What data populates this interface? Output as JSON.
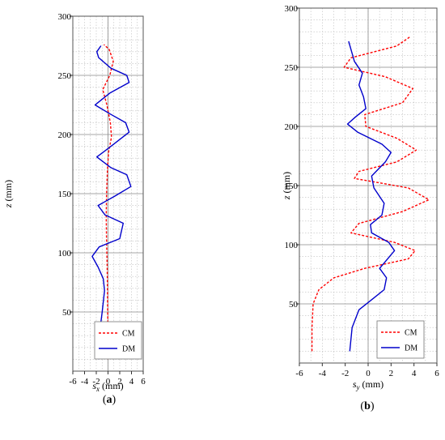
{
  "chart_data": [
    {
      "type": "line",
      "panel_label": "(a)",
      "xlabel": "s",
      "xlabel_sub": "x",
      "xlabel_unit": " (mm)",
      "ylabel": "z",
      "ylabel_unit": " (mm)",
      "xlim": [
        -6,
        6
      ],
      "ylim": [
        0,
        300
      ],
      "xticks": [
        -6,
        -4,
        -2,
        0,
        2,
        4,
        6
      ],
      "yticks": [
        50,
        100,
        150,
        200,
        250,
        300
      ],
      "grid": true,
      "legend_position": "bottom-right",
      "series": [
        {
          "name": "CM",
          "color": "#ff0000",
          "dash": "dashed",
          "points": [
            [
              0,
              10
            ],
            [
              0,
              30
            ],
            [
              -0.05,
              50
            ],
            [
              -0.1,
              70
            ],
            [
              -0.15,
              90
            ],
            [
              -0.25,
              110
            ],
            [
              -0.3,
              130
            ],
            [
              -0.25,
              150
            ],
            [
              -0.1,
              170
            ],
            [
              0.1,
              185
            ],
            [
              0.6,
              198
            ],
            [
              0.4,
              210
            ],
            [
              -0.2,
              225
            ],
            [
              -0.9,
              238
            ],
            [
              0.3,
              250
            ],
            [
              0.9,
              262
            ],
            [
              0.2,
              272
            ],
            [
              -0.7,
              276
            ]
          ]
        },
        {
          "name": "DM",
          "color": "#0000cc",
          "dash": "solid",
          "points": [
            [
              -1.6,
              10
            ],
            [
              -1.5,
              30
            ],
            [
              -1,
              50
            ],
            [
              -0.6,
              68
            ],
            [
              -0.8,
              78
            ],
            [
              -1.7,
              88
            ],
            [
              -2.7,
              97
            ],
            [
              -1.5,
              105
            ],
            [
              2.0,
              112
            ],
            [
              2.6,
              125
            ],
            [
              -0.5,
              132
            ],
            [
              -1.7,
              140
            ],
            [
              1.2,
              148
            ],
            [
              3.9,
              156
            ],
            [
              3.2,
              166
            ],
            [
              0.5,
              172
            ],
            [
              -1.9,
              181
            ],
            [
              0.5,
              190
            ],
            [
              3.6,
              202
            ],
            [
              3.0,
              210
            ],
            [
              0.5,
              217
            ],
            [
              -2.2,
              225
            ],
            [
              0.3,
              235
            ],
            [
              3.6,
              244
            ],
            [
              3.2,
              250
            ],
            [
              0.5,
              256
            ],
            [
              -1.6,
              265
            ],
            [
              -1.9,
              270
            ],
            [
              -1.2,
              275
            ]
          ]
        }
      ]
    },
    {
      "type": "line",
      "panel_label": "(b)",
      "xlabel": "s",
      "xlabel_sub": "y",
      "xlabel_unit": " (mm)",
      "ylabel": "z",
      "ylabel_unit": " (mm)",
      "xlim": [
        -6,
        6
      ],
      "ylim": [
        0,
        300
      ],
      "xticks": [
        -6,
        -4,
        -2,
        0,
        2,
        4,
        6
      ],
      "yticks": [
        50,
        100,
        150,
        200,
        250,
        300
      ],
      "grid": true,
      "legend_position": "bottom-right",
      "series": [
        {
          "name": "CM",
          "color": "#ff0000",
          "dash": "dashed",
          "points": [
            [
              -4.9,
              10
            ],
            [
              -4.9,
              30
            ],
            [
              -4.8,
              50
            ],
            [
              -4.3,
              62
            ],
            [
              -3.0,
              72
            ],
            [
              -0.3,
              80
            ],
            [
              3.5,
              88
            ],
            [
              4.1,
              95
            ],
            [
              2.3,
              102
            ],
            [
              -1.5,
              110
            ],
            [
              -0.8,
              118
            ],
            [
              3.0,
              128
            ],
            [
              5.3,
              138
            ],
            [
              3.5,
              148
            ],
            [
              -1.2,
              156
            ],
            [
              -0.8,
              162
            ],
            [
              2.5,
              170
            ],
            [
              4.2,
              180
            ],
            [
              2.5,
              190
            ],
            [
              -0.2,
              200
            ],
            [
              -0.3,
              210
            ],
            [
              3.0,
              220
            ],
            [
              3.9,
              232
            ],
            [
              1.5,
              242
            ],
            [
              -2.1,
              250
            ],
            [
              -1.5,
              258
            ],
            [
              2.5,
              268
            ],
            [
              3.7,
              276
            ]
          ]
        },
        {
          "name": "DM",
          "color": "#0000cc",
          "dash": "solid",
          "points": [
            [
              -1.6,
              10
            ],
            [
              -1.4,
              30
            ],
            [
              -0.8,
              45
            ],
            [
              0.5,
              55
            ],
            [
              1.4,
              62
            ],
            [
              1.6,
              72
            ],
            [
              1.0,
              80
            ],
            [
              2.3,
              95
            ],
            [
              1.8,
              102
            ],
            [
              0.3,
              110
            ],
            [
              0.2,
              117
            ],
            [
              1.2,
              125
            ],
            [
              1.4,
              135
            ],
            [
              0.5,
              148
            ],
            [
              0.3,
              158
            ],
            [
              1.5,
              170
            ],
            [
              2.0,
              178
            ],
            [
              1.2,
              185
            ],
            [
              -0.9,
              195
            ],
            [
              -1.8,
              202
            ],
            [
              -1.1,
              208
            ],
            [
              -0.2,
              215
            ],
            [
              -0.4,
              225
            ],
            [
              -0.8,
              235
            ],
            [
              -0.5,
              245
            ],
            [
              -1.2,
              255
            ],
            [
              -1.5,
              265
            ],
            [
              -1.7,
              272
            ]
          ]
        }
      ]
    }
  ]
}
